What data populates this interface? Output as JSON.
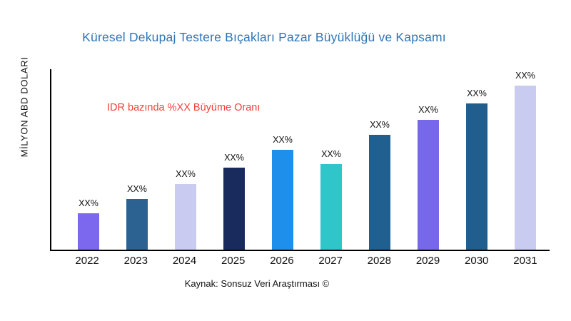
{
  "chart_data": {
    "type": "bar",
    "title": "Küresel Dekupaj Testere Bıçakları Pazar Büyüklüğü ve Kapsamı",
    "ylabel": "MİLYON ABD DOLARI",
    "annotation": "IDR bazında %XX Büyüme Oranı",
    "source": "Kaynak: Sonsuz Veri Araştırması ©",
    "categories": [
      "2022",
      "2023",
      "2024",
      "2025",
      "2026",
      "2027",
      "2028",
      "2029",
      "2030",
      "2031"
    ],
    "values": [
      22,
      31,
      40,
      50,
      61,
      52,
      70,
      79,
      89,
      100
    ],
    "bar_labels": [
      "XX%",
      "XX%",
      "XX%",
      "XX%",
      "XX%",
      "XX%",
      "XX%",
      "XX%",
      "XX%",
      "XX%"
    ],
    "bar_colors": [
      "#7B68EE",
      "#2B6291",
      "#C9CCF0",
      "#182B5C",
      "#1E8FEA",
      "#2FC5C9",
      "#1F6090",
      "#7668E8",
      "#215E8E",
      "#C9CCF0"
    ],
    "ylim": [
      0,
      110
    ],
    "grid": false,
    "legend": "none",
    "title_color": "#2E75B6",
    "annotation_color": "#F0403C",
    "axis_color": "#000000"
  }
}
